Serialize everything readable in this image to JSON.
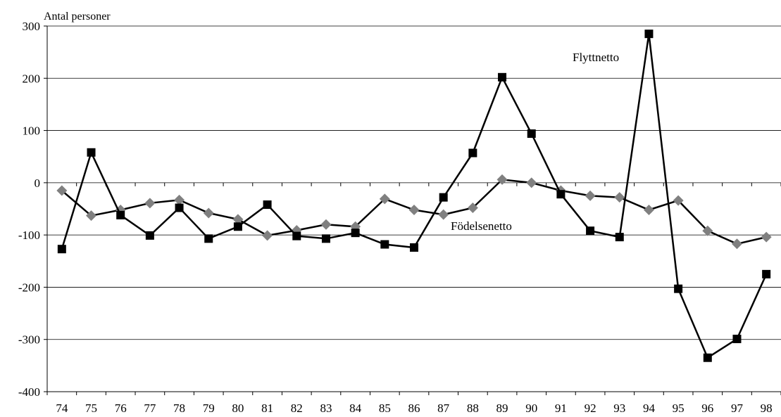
{
  "chart_data": {
    "type": "line",
    "title": "",
    "xlabel": "",
    "ylabel": "Antal personer",
    "categories": [
      "74",
      "75",
      "76",
      "77",
      "78",
      "79",
      "80",
      "81",
      "82",
      "83",
      "84",
      "85",
      "86",
      "87",
      "88",
      "89",
      "90",
      "91",
      "92",
      "93",
      "94",
      "95",
      "96",
      "97",
      "98"
    ],
    "ylim": [
      -400,
      300
    ],
    "yticks": [
      -400,
      -300,
      -200,
      -100,
      0,
      100,
      200,
      300
    ],
    "grid": true,
    "legend": "none",
    "series": [
      {
        "name": "Flyttnetto",
        "color": "#000000",
        "marker": "square",
        "values": [
          -127,
          58,
          -62,
          -101,
          -48,
          -107,
          -84,
          -42,
          -102,
          -107,
          -96,
          -118,
          -124,
          -28,
          57,
          202,
          94,
          -22,
          -92,
          -104,
          285,
          -203,
          -335,
          -299,
          -175
        ]
      },
      {
        "name": "Födelsenetto",
        "color": "#808080",
        "marker": "diamond",
        "values": [
          -15,
          -63,
          -52,
          -39,
          -33,
          -58,
          -70,
          -101,
          -91,
          -80,
          -84,
          -31,
          -52,
          -61,
          -48,
          6,
          0,
          -15,
          -25,
          -28,
          -52,
          -34,
          -92,
          -117,
          -104
        ]
      }
    ],
    "annotations": [
      "Flyttnetto",
      "Födelsenetto"
    ]
  }
}
